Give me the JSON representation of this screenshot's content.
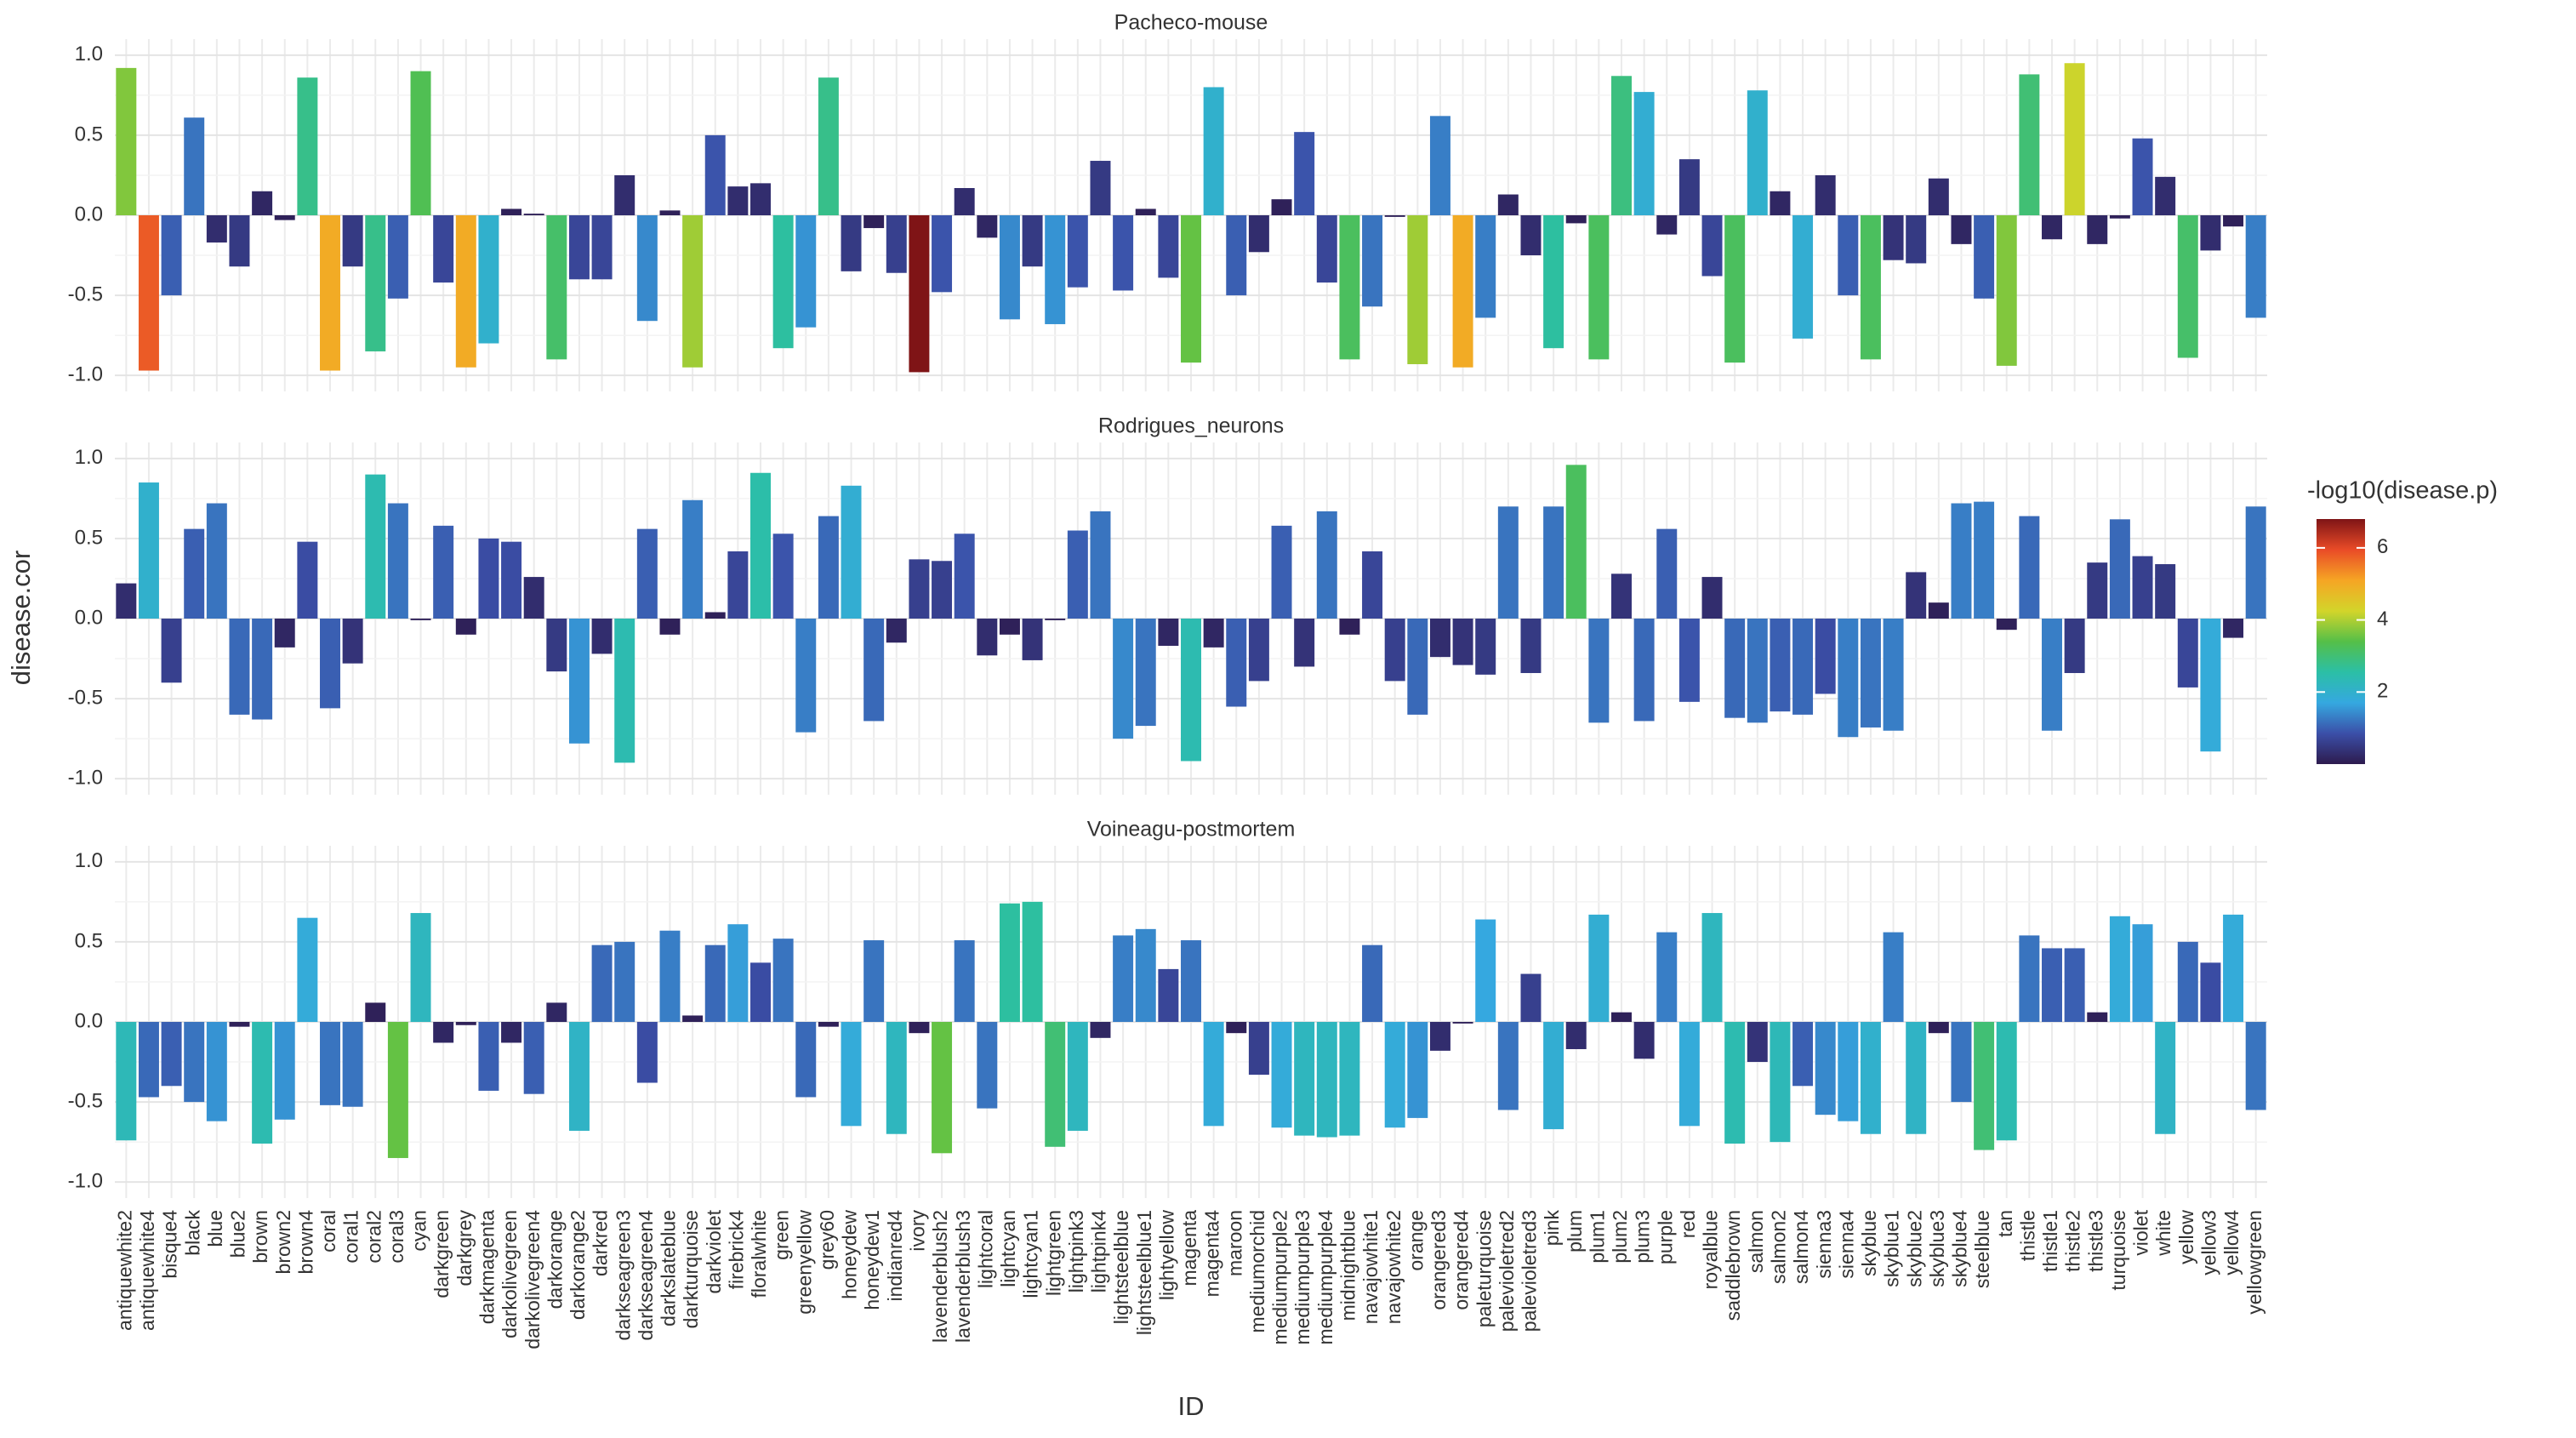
{
  "chart_data": {
    "type": "bar",
    "x_label": "ID",
    "y_label": "disease.cor",
    "categories": [
      "antiquewhite2",
      "antiquewhite4",
      "bisque4",
      "black",
      "blue",
      "blue2",
      "brown",
      "brown2",
      "brown4",
      "coral",
      "coral1",
      "coral2",
      "coral3",
      "cyan",
      "darkgreen",
      "darkgrey",
      "darkmagenta",
      "darkolivegreen",
      "darkolivegreen4",
      "darkorange",
      "darkorange2",
      "darkred",
      "darkseagreen3",
      "darkseagreen4",
      "darkslateblue",
      "darkturquoise",
      "darkviolet",
      "firebrick4",
      "floralwhite",
      "green",
      "greenyellow",
      "grey60",
      "honeydew",
      "honeydew1",
      "indianred4",
      "ivory",
      "lavenderblush2",
      "lavenderblush3",
      "lightcoral",
      "lightcyan",
      "lightcyan1",
      "lightgreen",
      "lightpink3",
      "lightpink4",
      "lightsteelblue",
      "lightsteelblue1",
      "lightyellow",
      "magenta",
      "magenta4",
      "maroon",
      "mediumorchid",
      "mediumpurple2",
      "mediumpurple3",
      "mediumpurple4",
      "midnightblue",
      "navajowhite1",
      "navajowhite2",
      "orange",
      "orangered3",
      "orangered4",
      "paleturquoise",
      "palevioletred2",
      "palevioletred3",
      "pink",
      "plum",
      "plum1",
      "plum2",
      "plum3",
      "purple",
      "red",
      "royalblue",
      "saddlebrown",
      "salmon",
      "salmon2",
      "salmon4",
      "sienna3",
      "sienna4",
      "skyblue",
      "skyblue1",
      "skyblue2",
      "skyblue3",
      "skyblue4",
      "steelblue",
      "tan",
      "thistle",
      "thistle1",
      "thistle2",
      "thistle3",
      "turquoise",
      "violet",
      "white",
      "yellow",
      "yellow3",
      "yellow4",
      "yellowgreen"
    ],
    "ylim": [
      -1.1,
      1.1
    ],
    "yticks": [
      {
        "value": -1.0,
        "label": "-1.0"
      },
      {
        "value": -0.5,
        "label": "-0.5"
      },
      {
        "value": 0.0,
        "label": "0.0"
      },
      {
        "value": 0.5,
        "label": "0.5"
      },
      {
        "value": 1.0,
        "label": "1.0"
      }
    ],
    "grid": true,
    "facets": [
      {
        "title": "Pacheco-mouse",
        "values": [
          0.92,
          -0.97,
          -0.5,
          0.61,
          -0.17,
          -0.32,
          0.15,
          -0.03,
          0.86,
          -0.97,
          -0.32,
          -0.85,
          -0.52,
          0.9,
          -0.42,
          -0.95,
          -0.8,
          0.04,
          0.01,
          -0.9,
          -0.4,
          -0.4,
          0.25,
          -0.66,
          0.03,
          -0.95,
          0.5,
          0.18,
          0.2,
          -0.83,
          -0.7,
          0.86,
          -0.35,
          -0.08,
          -0.36,
          -0.98,
          -0.48,
          0.17,
          -0.14,
          -0.65,
          -0.32,
          -0.68,
          -0.45,
          0.34,
          -0.47,
          0.04,
          -0.39,
          -0.92,
          0.8,
          -0.5,
          -0.23,
          0.1,
          0.52,
          -0.42,
          -0.9,
          -0.57,
          -0.01,
          -0.93,
          0.62,
          -0.95,
          -0.64,
          0.13,
          -0.25,
          -0.83,
          -0.05,
          -0.9,
          0.87,
          0.77,
          -0.12,
          0.35,
          -0.38,
          -0.92,
          0.78,
          0.15,
          -0.77,
          0.25,
          -0.5,
          -0.9,
          -0.28,
          -0.3,
          0.23,
          -0.18,
          -0.52,
          -0.94,
          0.88,
          -0.15,
          0.95,
          -0.18,
          -0.02,
          0.48,
          0.24,
          -0.89,
          -0.22,
          -0.07,
          -0.64
        ],
        "color_values": [
          3.7,
          5.8,
          1.0,
          1.2,
          0.3,
          0.5,
          0.2,
          0.1,
          2.8,
          5.0,
          0.5,
          2.8,
          1.0,
          3.3,
          0.7,
          5.0,
          2.0,
          0.1,
          0.1,
          3.1,
          0.7,
          0.7,
          0.3,
          1.4,
          0.1,
          3.9,
          0.9,
          0.3,
          0.3,
          2.6,
          1.5,
          2.8,
          0.5,
          0.1,
          0.6,
          6.8,
          0.9,
          0.3,
          0.2,
          1.4,
          0.5,
          1.5,
          0.9,
          0.5,
          0.9,
          0.1,
          0.7,
          3.5,
          2.0,
          1.0,
          0.3,
          0.1,
          0.9,
          0.7,
          3.2,
          1.2,
          0.1,
          3.9,
          1.3,
          5.0,
          1.3,
          0.2,
          0.3,
          2.6,
          0.1,
          3.2,
          2.9,
          1.9,
          0.2,
          0.5,
          0.7,
          3.2,
          2.0,
          0.2,
          1.9,
          0.3,
          1.0,
          3.2,
          0.4,
          0.5,
          0.3,
          0.2,
          1.0,
          3.7,
          3.0,
          0.2,
          4.2,
          0.2,
          0.1,
          0.9,
          0.3,
          3.1,
          0.3,
          0.1,
          1.3
        ]
      },
      {
        "title": "Rodrigues_neurons",
        "values": [
          0.22,
          0.85,
          -0.4,
          0.56,
          0.72,
          -0.6,
          -0.63,
          -0.18,
          0.48,
          -0.56,
          -0.28,
          0.9,
          0.72,
          -0.01,
          0.58,
          -0.1,
          0.5,
          0.48,
          0.26,
          -0.33,
          -0.78,
          -0.22,
          -0.9,
          0.56,
          -0.1,
          0.74,
          0.04,
          0.42,
          0.91,
          0.53,
          -0.71,
          0.64,
          0.83,
          -0.64,
          -0.15,
          0.37,
          0.36,
          0.53,
          -0.23,
          -0.1,
          -0.26,
          -0.01,
          0.55,
          0.67,
          -0.75,
          -0.67,
          -0.17,
          -0.89,
          -0.18,
          -0.55,
          -0.39,
          0.58,
          -0.3,
          0.67,
          -0.1,
          0.42,
          -0.39,
          -0.6,
          -0.24,
          -0.29,
          -0.35,
          0.7,
          -0.34,
          0.7,
          0.96,
          -0.65,
          0.28,
          -0.64,
          0.56,
          -0.52,
          0.26,
          -0.62,
          -0.65,
          -0.58,
          -0.6,
          -0.47,
          -0.74,
          -0.68,
          -0.7,
          0.29,
          0.1,
          0.72,
          0.73,
          -0.07,
          0.64,
          -0.7,
          -0.34,
          0.35,
          0.62,
          0.39,
          0.34,
          -0.43,
          -0.83,
          -0.12,
          0.7
        ],
        "color_values": [
          0.3,
          2.0,
          0.6,
          1.0,
          1.2,
          1.1,
          1.1,
          0.2,
          0.8,
          1.0,
          0.4,
          2.4,
          1.2,
          0.1,
          1.0,
          0.1,
          0.8,
          0.8,
          0.3,
          0.5,
          1.5,
          0.3,
          2.4,
          1.0,
          0.1,
          1.3,
          0.1,
          0.7,
          2.5,
          0.9,
          1.3,
          1.1,
          1.9,
          1.1,
          0.2,
          0.6,
          0.6,
          0.9,
          0.3,
          0.1,
          0.4,
          0.1,
          1.0,
          1.2,
          1.4,
          1.2,
          0.2,
          2.4,
          0.2,
          1.0,
          0.6,
          1.0,
          0.4,
          1.2,
          0.1,
          0.7,
          0.6,
          1.1,
          0.3,
          0.4,
          0.5,
          1.2,
          0.5,
          1.2,
          3.2,
          1.2,
          0.4,
          1.1,
          1.0,
          0.9,
          0.3,
          1.1,
          1.2,
          1.0,
          1.1,
          0.8,
          1.3,
          1.2,
          1.3,
          0.4,
          0.1,
          1.3,
          1.3,
          0.1,
          1.1,
          1.3,
          0.5,
          0.5,
          1.1,
          0.6,
          0.5,
          0.7,
          1.8,
          0.2,
          1.2
        ]
      },
      {
        "title": "Voineagu-postmortem",
        "values": [
          -0.74,
          -0.47,
          -0.4,
          -0.5,
          -0.62,
          -0.03,
          -0.76,
          -0.61,
          0.65,
          -0.52,
          -0.53,
          0.12,
          -0.85,
          0.68,
          -0.13,
          -0.02,
          -0.43,
          -0.13,
          -0.45,
          0.12,
          -0.68,
          0.48,
          0.5,
          -0.38,
          0.57,
          0.04,
          0.48,
          0.61,
          0.37,
          0.52,
          -0.47,
          -0.03,
          -0.65,
          0.51,
          -0.7,
          -0.07,
          -0.82,
          0.51,
          -0.54,
          0.74,
          0.75,
          -0.78,
          -0.68,
          -0.1,
          0.54,
          0.58,
          0.33,
          0.51,
          -0.65,
          -0.07,
          -0.33,
          -0.66,
          -0.71,
          -0.72,
          -0.71,
          0.48,
          -0.66,
          -0.6,
          -0.18,
          -0.01,
          0.64,
          -0.55,
          0.3,
          -0.67,
          -0.17,
          0.67,
          0.06,
          -0.23,
          0.56,
          -0.65,
          0.68,
          -0.76,
          -0.25,
          -0.75,
          -0.4,
          -0.58,
          -0.62,
          -0.7,
          0.56,
          -0.7,
          -0.07,
          -0.5,
          -0.8,
          -0.74,
          0.54,
          0.46,
          0.46,
          0.06,
          0.66,
          0.61,
          -0.7,
          0.5,
          0.37,
          0.67,
          -0.55
        ],
        "color_values": [
          2.3,
          1.1,
          1.0,
          1.2,
          1.5,
          0.1,
          2.4,
          1.5,
          1.8,
          1.2,
          1.2,
          0.1,
          3.5,
          2.2,
          0.2,
          0.1,
          1.0,
          0.2,
          1.0,
          0.2,
          2.1,
          1.1,
          1.2,
          0.8,
          1.3,
          0.1,
          1.1,
          1.6,
          0.8,
          1.2,
          1.1,
          0.1,
          1.8,
          1.2,
          2.2,
          0.1,
          3.5,
          1.2,
          1.2,
          2.6,
          2.6,
          3.0,
          2.2,
          0.2,
          1.3,
          1.4,
          0.7,
          1.2,
          1.8,
          0.1,
          0.6,
          1.8,
          2.2,
          2.2,
          2.2,
          1.1,
          1.8,
          1.5,
          0.3,
          0.1,
          1.7,
          1.2,
          0.6,
          1.9,
          0.3,
          1.9,
          0.1,
          0.3,
          1.3,
          1.8,
          2.2,
          2.4,
          0.4,
          2.3,
          1.0,
          1.4,
          1.6,
          2.0,
          1.3,
          2.1,
          0.1,
          1.2,
          3.0,
          2.4,
          1.2,
          1.0,
          1.0,
          0.1,
          1.8,
          1.6,
          2.1,
          1.1,
          0.8,
          1.8,
          1.2
        ]
      }
    ],
    "colorbar": {
      "title": "-log10(disease.p)",
      "clim": [
        0,
        6.8
      ],
      "ticks": [
        2,
        4,
        6
      ],
      "colors": [
        "#2d1b4e",
        "#3b4fa8",
        "#35a8e0",
        "#2bbfa6",
        "#55bf48",
        "#d3d52a",
        "#f6a524",
        "#e94b27",
        "#7f1416"
      ]
    }
  }
}
